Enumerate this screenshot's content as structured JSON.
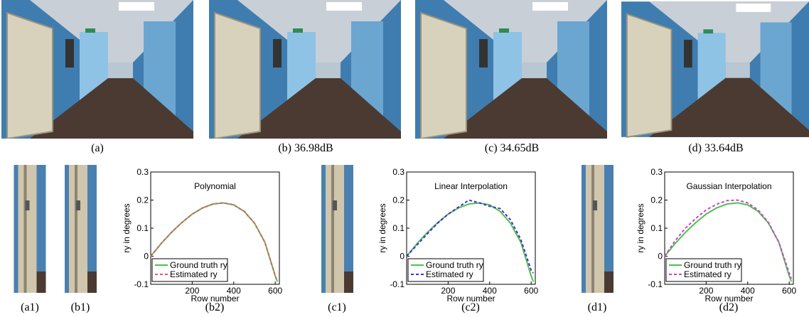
{
  "captions": [
    "(a)",
    "(b) 36.98dB",
    "(c) 34.65dB",
    "(d) 33.64dB",
    "(a1)",
    "(b1)",
    "(b2)",
    "(c1)",
    "(c2)",
    "(d1)",
    "(d2)"
  ],
  "chart_data": [
    {
      "type": "line",
      "title": "Polynomial",
      "x_label": "Row number",
      "y_label": "ry in degrees",
      "xlim": [
        0,
        620
      ],
      "ylim": [
        -0.1,
        0.3
      ],
      "xticks": [
        200,
        400,
        600
      ],
      "yticks": [
        -0.1,
        0,
        0.1,
        0.2,
        0.3
      ],
      "legend": "lower left",
      "x": [
        0,
        50,
        100,
        150,
        200,
        250,
        300,
        350,
        400,
        450,
        500,
        550,
        600,
        610
      ],
      "series": [
        {
          "name": "Ground truth ry",
          "color": "#4cc24c",
          "linestyle": "solid",
          "values": [
            0,
            0.045,
            0.085,
            0.12,
            0.15,
            0.172,
            0.186,
            0.19,
            0.183,
            0.16,
            0.118,
            0.05,
            -0.07,
            -0.09
          ]
        },
        {
          "name": "Estimated ry",
          "color": "#e8566a",
          "linestyle": "dashed",
          "values": [
            0,
            0.045,
            0.085,
            0.12,
            0.15,
            0.172,
            0.186,
            0.19,
            0.183,
            0.16,
            0.118,
            0.05,
            -0.07,
            -0.09
          ]
        }
      ]
    },
    {
      "type": "line",
      "title": "Linear Interpolation",
      "x_label": "Row number",
      "y_label": "ry in degrees",
      "xlim": [
        0,
        620
      ],
      "ylim": [
        -0.1,
        0.3
      ],
      "xticks": [
        200,
        400,
        600
      ],
      "yticks": [
        -0.1,
        0,
        0.1,
        0.2,
        0.3
      ],
      "legend": "lower left",
      "x": [
        0,
        50,
        100,
        150,
        200,
        250,
        300,
        350,
        400,
        450,
        500,
        550,
        600,
        610
      ],
      "series": [
        {
          "name": "Ground truth ry",
          "color": "#4cc24c",
          "linestyle": "solid",
          "values": [
            0,
            0.045,
            0.085,
            0.12,
            0.15,
            0.172,
            0.186,
            0.19,
            0.183,
            0.16,
            0.118,
            0.05,
            -0.07,
            -0.09
          ]
        },
        {
          "name": "Estimated ry",
          "color": "#4b2bd6",
          "linestyle": "dashed",
          "values": [
            0,
            0.04,
            0.08,
            0.118,
            0.15,
            0.175,
            0.2,
            0.19,
            0.178,
            0.17,
            0.13,
            0.06,
            -0.05,
            -0.06
          ]
        }
      ]
    },
    {
      "type": "line",
      "title": "Gaussian Interpolation",
      "x_label": "Row number",
      "y_label": "ry in degrees",
      "xlim": [
        0,
        620
      ],
      "ylim": [
        -0.1,
        0.3
      ],
      "xticks": [
        200,
        400,
        600
      ],
      "yticks": [
        -0.1,
        0,
        0.1,
        0.2,
        0.3
      ],
      "legend": "lower left",
      "x": [
        0,
        50,
        100,
        150,
        200,
        250,
        300,
        350,
        400,
        450,
        500,
        550,
        600,
        610
      ],
      "series": [
        {
          "name": "Ground truth ry",
          "color": "#4cc24c",
          "linestyle": "solid",
          "values": [
            0,
            0.045,
            0.085,
            0.12,
            0.15,
            0.172,
            0.186,
            0.19,
            0.183,
            0.16,
            0.118,
            0.05,
            -0.07,
            -0.09
          ]
        },
        {
          "name": "Estimated ry",
          "color": "#d040d0",
          "linestyle": "dashed",
          "values": [
            0,
            0.055,
            0.1,
            0.135,
            0.165,
            0.185,
            0.198,
            0.2,
            0.19,
            0.165,
            0.12,
            0.05,
            -0.06,
            -0.08
          ]
        }
      ]
    }
  ]
}
